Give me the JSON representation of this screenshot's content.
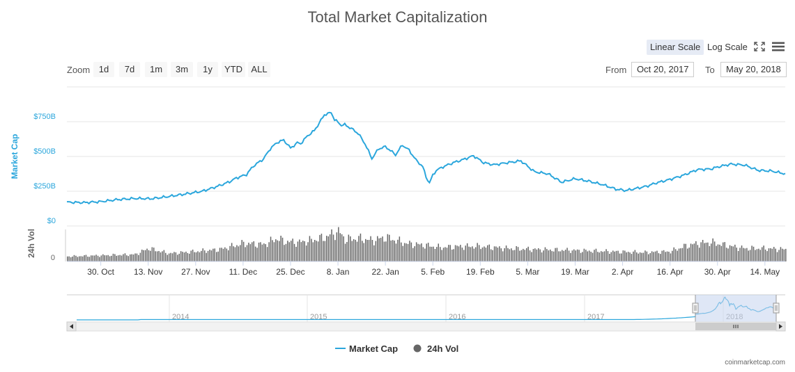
{
  "title": "Total Market Capitalization",
  "toolbar": {
    "linear_label": "Linear Scale",
    "log_label": "Log Scale",
    "fullscreen_icon": "fullscreen-icon",
    "menu_icon": "hamburger-menu-icon"
  },
  "zoom": {
    "label": "Zoom",
    "buttons": [
      "1d",
      "7d",
      "1m",
      "3m",
      "1y",
      "YTD",
      "ALL"
    ]
  },
  "range": {
    "from_label": "From",
    "from_value": "Oct 20, 2017",
    "to_label": "To",
    "to_value": "May 20, 2018"
  },
  "colors": {
    "market_cap": "#2aa6dc",
    "volume": "#666666",
    "grid": "#e6e6e6",
    "navigator_mask": "#c5d3ef"
  },
  "chart_data": {
    "type": "line",
    "title": "Total Market Capitalization",
    "y_axis": {
      "label": "Market Cap",
      "ticks": [
        "$0",
        "$250B",
        "$500B",
        "$750B"
      ],
      "ylim_billions": [
        0,
        1000
      ]
    },
    "volume_axis": {
      "label": "24h Vol",
      "ticks": [
        "0"
      ]
    },
    "x_ticks": [
      "30. Oct",
      "13. Nov",
      "27. Nov",
      "11. Dec",
      "25. Dec",
      "8. Jan",
      "22. Jan",
      "5. Feb",
      "19. Feb",
      "5. Mar",
      "19. Mar",
      "2. Apr",
      "16. Apr",
      "30. Apr",
      "14. May"
    ],
    "x_range_days": [
      0,
      212
    ],
    "x_tick_days": [
      10,
      24,
      38,
      52,
      66,
      80,
      94,
      108,
      122,
      136,
      150,
      164,
      178,
      192,
      206
    ],
    "series": [
      {
        "name": "Market Cap",
        "unit": "billion USD",
        "days": [
          0,
          5,
          10,
          15,
          20,
          25,
          30,
          35,
          40,
          45,
          48,
          50,
          53,
          55,
          58,
          60,
          62,
          64,
          66,
          68,
          69,
          71,
          73,
          75,
          76,
          78,
          79,
          80,
          81,
          82,
          84,
          86,
          88,
          90,
          92,
          94,
          95,
          97,
          99,
          101,
          103,
          105,
          106,
          107,
          108,
          109,
          111,
          114,
          117,
          120,
          123,
          126,
          130,
          134,
          138,
          142,
          146,
          150,
          154,
          158,
          162,
          165,
          168,
          171,
          174,
          178,
          182,
          186,
          190,
          193,
          196,
          200,
          204,
          208,
          212
        ],
        "values": [
          171,
          168,
          175,
          190,
          198,
          196,
          212,
          230,
          250,
          290,
          318,
          345,
          370,
          430,
          482,
          555,
          600,
          618,
          560,
          598,
          592,
          648,
          685,
          760,
          800,
          815,
          765,
          745,
          725,
          728,
          700,
          665,
          590,
          485,
          555,
          570,
          552,
          512,
          582,
          545,
          475,
          428,
          352,
          310,
          365,
          400,
          425,
          455,
          478,
          505,
          455,
          440,
          455,
          468,
          390,
          375,
          315,
          340,
          322,
          298,
          265,
          255,
          270,
          285,
          310,
          335,
          365,
          405,
          410,
          430,
          445,
          438,
          400,
          395,
          375
        ]
      },
      {
        "name": "24h Vol",
        "unit": "billion USD",
        "days": [
          0,
          10,
          20,
          24,
          30,
          38,
          45,
          52,
          58,
          62,
          64,
          68,
          72,
          76,
          80,
          82,
          86,
          90,
          94,
          100,
          106,
          110,
          116,
          122,
          130,
          138,
          150,
          160,
          170,
          178,
          182,
          186,
          190,
          196,
          200,
          206,
          212
        ],
        "values": [
          5,
          6,
          7,
          13,
          8,
          10,
          12,
          18,
          17,
          23,
          20,
          19,
          21,
          24,
          30,
          22,
          23,
          21,
          24,
          18,
          16,
          14,
          15,
          15,
          13,
          12,
          11,
          10,
          9,
          10,
          15,
          18,
          19,
          15,
          13,
          13,
          12
        ]
      }
    ],
    "navigator": {
      "year_labels": [
        "2014",
        "2015",
        "2016",
        "2017",
        "2018"
      ]
    },
    "legend": [
      "Market Cap",
      "24h Vol"
    ]
  },
  "credit": "coinmarketcap.com"
}
